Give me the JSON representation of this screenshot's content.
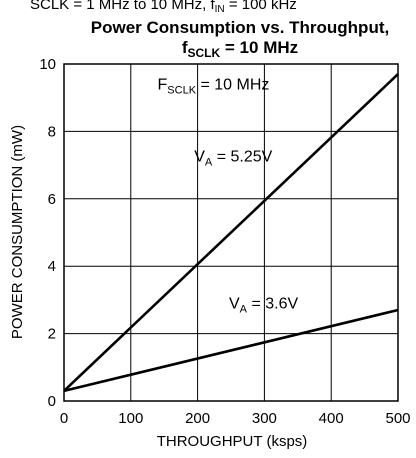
{
  "chart_data": {
    "type": "line",
    "partial_header": {
      "text": "SCLK = 1 MHz to 10 MHz, f",
      "sub": "IN",
      "tail": " = 100 kHz"
    },
    "title": {
      "line1": "Power Consumption vs. Throughput,",
      "line2_main": "f",
      "line2_sub": "SCLK",
      "line2_tail": " = 10 MHz"
    },
    "xlabel": "THROUGHPUT (ksps)",
    "ylabel": "POWER CONSUMPTION (mW)",
    "xlim": [
      0,
      500
    ],
    "ylim": [
      0,
      10
    ],
    "xticks": [
      "0",
      "100",
      "200",
      "300",
      "400",
      "500"
    ],
    "yticks": [
      "0",
      "2",
      "4",
      "6",
      "8",
      "10"
    ],
    "grid": true,
    "series": [
      {
        "name": "",
        "x": [
          0,
          500
        ],
        "y": [
          0.3,
          9.7
        ]
      },
      {
        "name": "",
        "x": [
          0,
          500
        ],
        "y": [
          0.3,
          2.7
        ]
      }
    ],
    "annotations": [
      {
        "main": "F",
        "sub": "SCLK",
        "tail": " = 10 MHz",
        "x": 140,
        "y": 9.25
      },
      {
        "main": "V",
        "sub": "A",
        "tail": " = 5.25V",
        "x": 195,
        "y": 7.1
      },
      {
        "main": "V",
        "sub": "A",
        "tail": " = 3.6V",
        "x": 247,
        "y": 2.75
      }
    ],
    "colors": {
      "line": "#000000",
      "grid": "#000000"
    }
  }
}
